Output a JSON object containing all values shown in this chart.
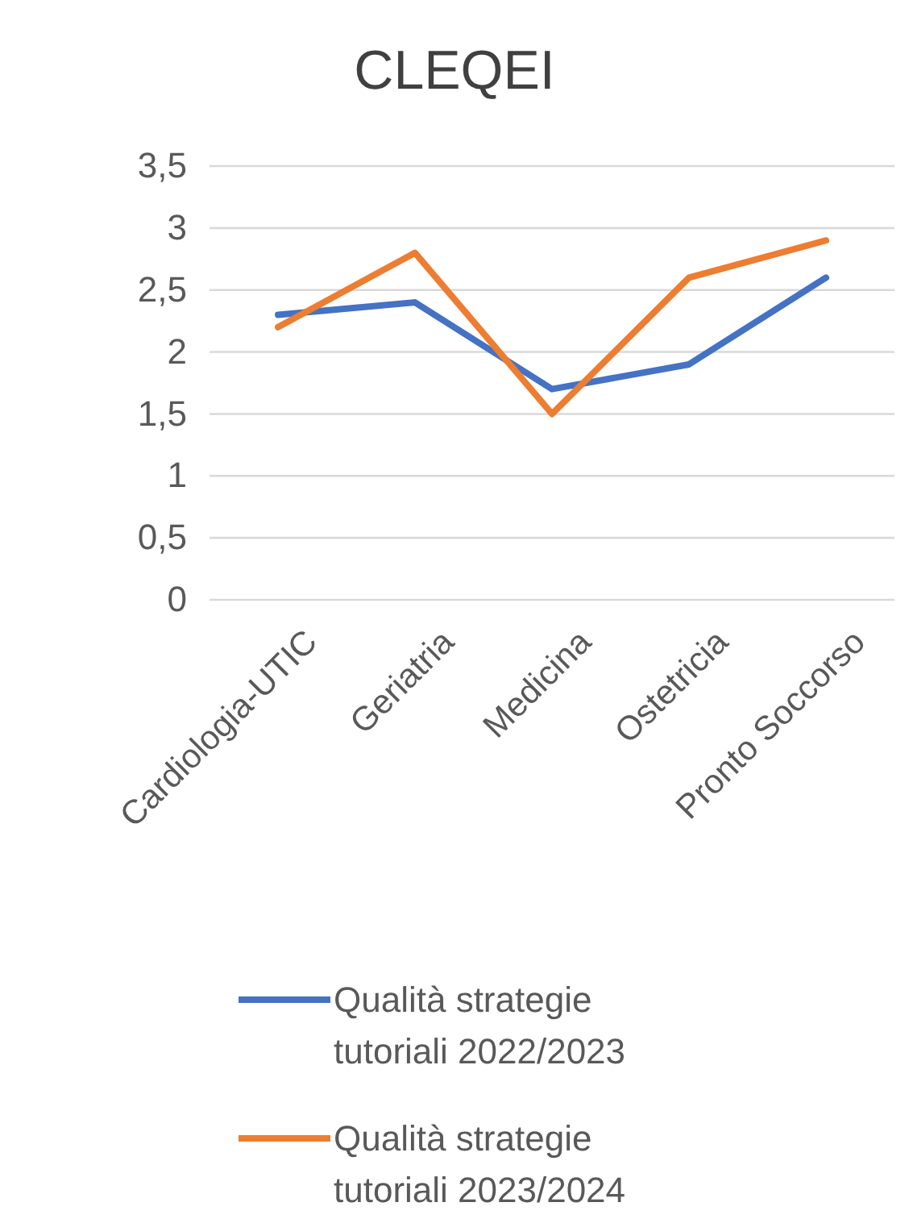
{
  "chart_data": {
    "type": "line",
    "title": "CLEQEI",
    "categories": [
      "Cardiologia-UTIC",
      "Geriatria",
      "Medicina",
      "Ostetricia",
      "Pronto Soccorso"
    ],
    "series": [
      {
        "name": "Qualità strategie tutoriali 2022/2023",
        "color": "#4472c4",
        "values": [
          2.3,
          2.4,
          1.7,
          1.9,
          2.6
        ]
      },
      {
        "name": "Qualità strategie tutoriali 2023/2024",
        "color": "#ed7d31",
        "values": [
          2.2,
          2.8,
          1.5,
          2.6,
          2.9
        ]
      }
    ],
    "ylim": [
      0,
      3.5
    ],
    "yticks": [
      0,
      {
        "value": 0.5,
        "label": "0,5"
      },
      1,
      {
        "value": 1.5,
        "label": "1,5"
      },
      2,
      {
        "value": 2.5,
        "label": "2,5"
      },
      3,
      {
        "value": 3.5,
        "label": "3,5"
      }
    ],
    "grid": "y",
    "legend": "bottom",
    "marker": "none",
    "line_style": "solid"
  }
}
